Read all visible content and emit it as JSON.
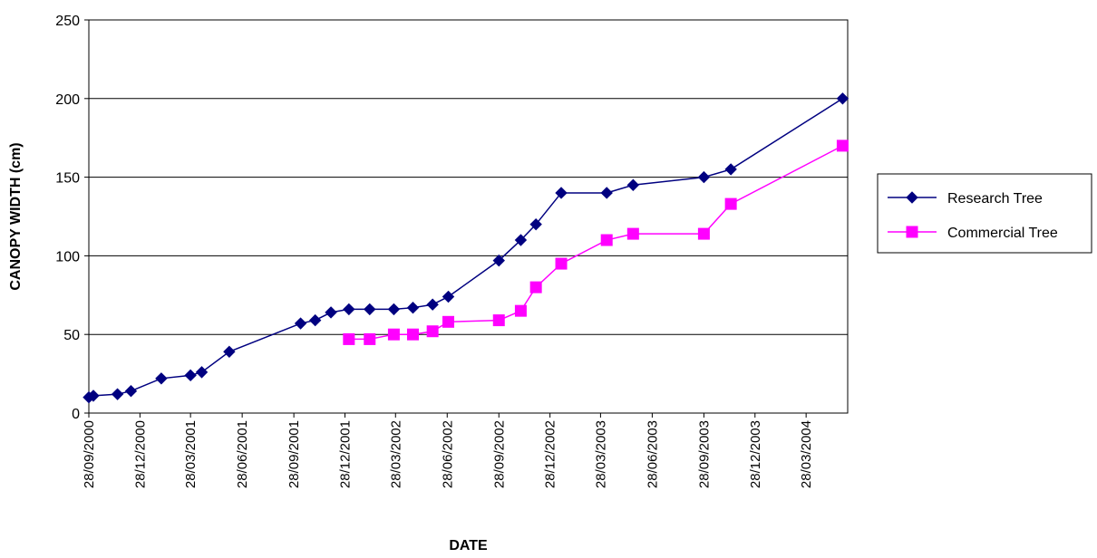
{
  "chart_data": {
    "type": "line",
    "xlabel": "DATE",
    "ylabel": "CANOPY WIDTH (cm)",
    "ylim": [
      0,
      250
    ],
    "xlim": [
      "2000-09-28",
      "2004-06-10"
    ],
    "yticks": [
      0,
      50,
      100,
      150,
      200,
      250
    ],
    "xticks": [
      "28/09/2000",
      "28/12/2000",
      "28/03/2001",
      "28/06/2001",
      "28/09/2001",
      "28/12/2001",
      "28/03/2002",
      "28/06/2002",
      "28/09/2002",
      "28/12/2002",
      "28/03/2003",
      "28/06/2003",
      "28/09/2003",
      "28/12/2003",
      "28/03/2004"
    ],
    "xtick_dates": [
      "2000-09-28",
      "2000-12-28",
      "2001-03-28",
      "2001-06-28",
      "2001-09-28",
      "2001-12-28",
      "2002-03-28",
      "2002-06-28",
      "2002-09-28",
      "2002-12-28",
      "2003-03-28",
      "2003-06-28",
      "2003-09-28",
      "2003-12-28",
      "2004-03-28"
    ],
    "grid": "horizontal",
    "legend": "right",
    "series": [
      {
        "name": "Research Tree",
        "color": "#000080",
        "marker": "diamond",
        "points": [
          [
            "2000-09-28",
            10
          ],
          [
            "2000-10-06",
            11
          ],
          [
            "2000-11-18",
            12
          ],
          [
            "2000-12-12",
            14
          ],
          [
            "2001-02-04",
            22
          ],
          [
            "2001-03-28",
            24
          ],
          [
            "2001-04-17",
            26
          ],
          [
            "2001-06-05",
            39
          ],
          [
            "2001-10-10",
            57
          ],
          [
            "2001-11-05",
            59
          ],
          [
            "2001-12-03",
            64
          ],
          [
            "2002-01-04",
            66
          ],
          [
            "2002-02-10",
            66
          ],
          [
            "2002-03-25",
            66
          ],
          [
            "2002-04-28",
            67
          ],
          [
            "2002-06-02",
            69
          ],
          [
            "2002-06-30",
            74
          ],
          [
            "2002-09-28",
            97
          ],
          [
            "2002-11-06",
            110
          ],
          [
            "2002-12-03",
            120
          ],
          [
            "2003-01-17",
            140
          ],
          [
            "2003-04-08",
            140
          ],
          [
            "2003-05-25",
            145
          ],
          [
            "2003-09-28",
            150
          ],
          [
            "2003-11-15",
            155
          ],
          [
            "2004-06-01",
            200
          ]
        ]
      },
      {
        "name": "Commercial Tree",
        "color": "#ff00ff",
        "marker": "square",
        "points": [
          [
            "2002-01-04",
            47
          ],
          [
            "2002-02-10",
            47
          ],
          [
            "2002-03-25",
            50
          ],
          [
            "2002-04-28",
            50
          ],
          [
            "2002-06-02",
            52
          ],
          [
            "2002-06-30",
            58
          ],
          [
            "2002-09-28",
            59
          ],
          [
            "2002-11-06",
            65
          ],
          [
            "2002-12-03",
            80
          ],
          [
            "2003-01-17",
            95
          ],
          [
            "2003-04-08",
            110
          ],
          [
            "2003-05-25",
            114
          ],
          [
            "2003-09-28",
            114
          ],
          [
            "2003-11-15",
            133
          ],
          [
            "2004-06-01",
            170
          ]
        ]
      }
    ]
  }
}
